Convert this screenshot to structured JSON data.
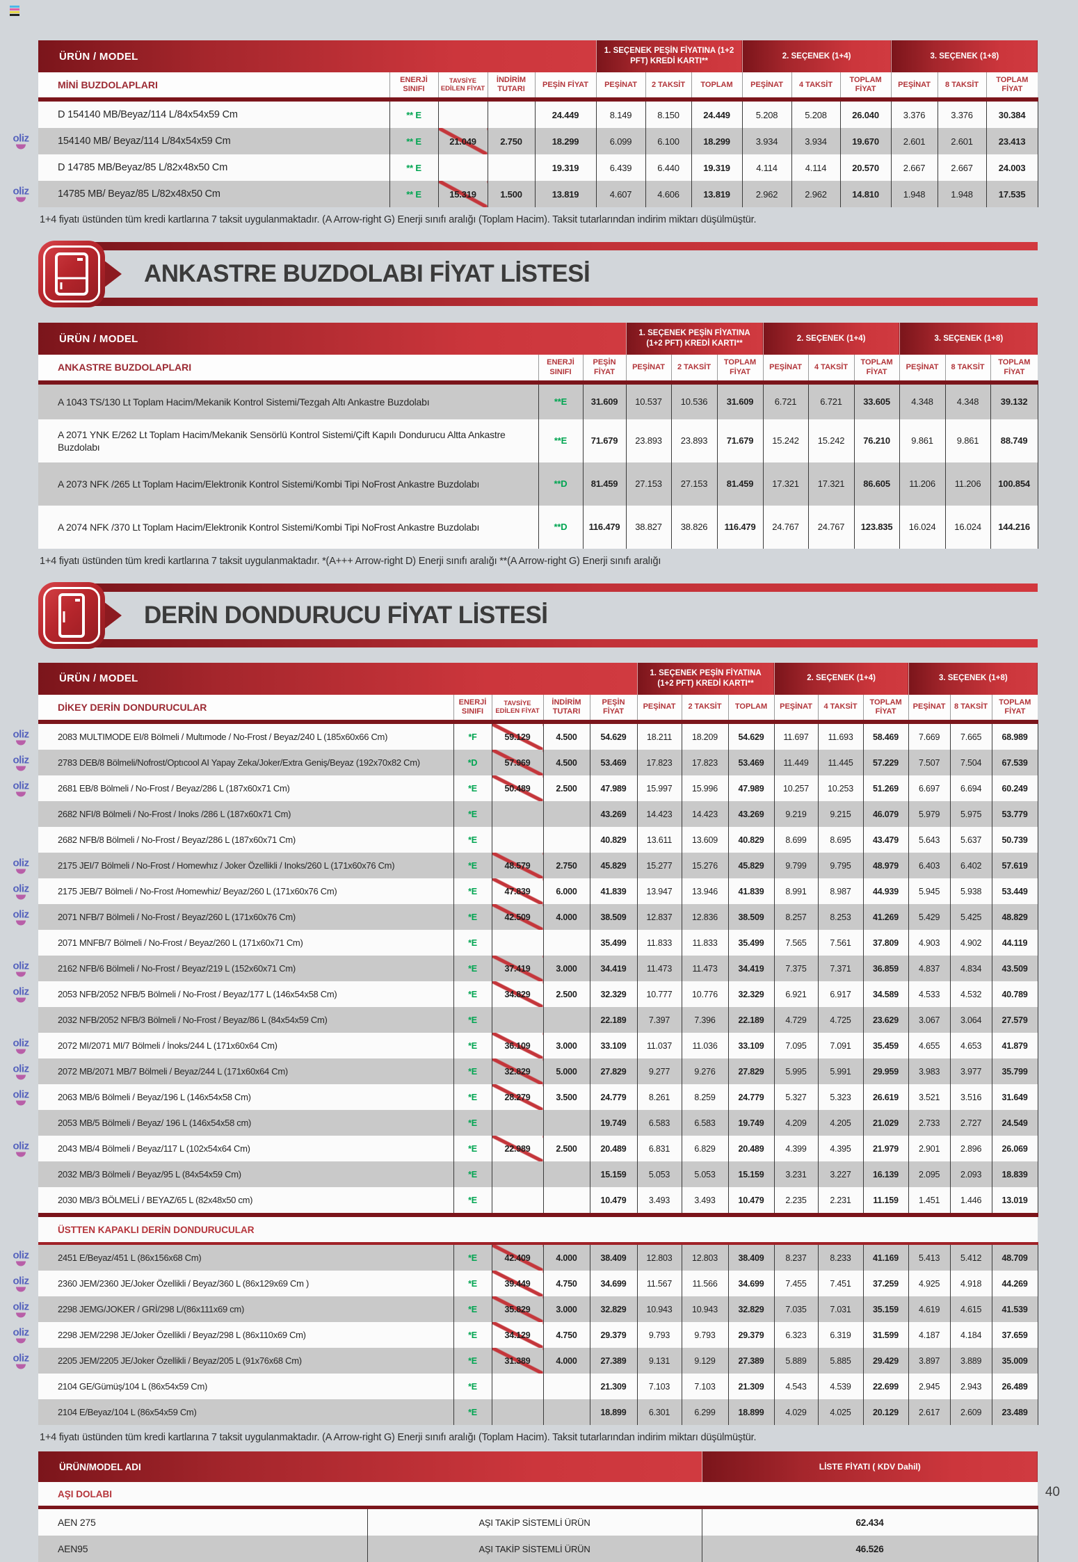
{
  "badge_label": "oliz",
  "page": {
    "number": "40"
  },
  "colors": {
    "accent_dark_red": "#7b151b",
    "accent_red": "#d03a40",
    "energy_green": "#00a551",
    "row_grey": "#c9c9c9",
    "badge_blue": "#5663bd",
    "badge_magenta": "#b85fa8"
  },
  "sections": {
    "ankastre_title": "ANKASTRE BUZDOLABI FİYAT LİSTESİ",
    "derin_title": "DERİN DONDURUCU FİYAT LİSTESİ"
  },
  "mini_table": {
    "urun_model_label": "ÜRÜN / MODEL",
    "group_headers": [
      "1. SEÇENEK PEŞİN FİYATINA (1+2 PFT) KREDİ KARTI**",
      "2. SEÇENEK (1+4)",
      "3. SEÇENEK (1+8)"
    ],
    "section_label": "MİNİ BUZDOLAPLARI",
    "col_headers": [
      "ENERJİ SINIFI",
      "TAVSİYE EDİLEN FİYAT",
      "İNDİRİM TUTARI",
      "PEŞİN FİYAT",
      "PEŞİNAT",
      "2 TAKSİT",
      "TOPLAM",
      "PEŞİNAT",
      "4 TAKSİT",
      "TOPLAM FİYAT",
      "PEŞİNAT",
      "8 TAKSİT",
      "TOPLAM FİYAT"
    ],
    "rows": [
      {
        "model": "D 154140 MB/Beyaz/114 L/84x54x59 Cm",
        "badge": false,
        "cells": [
          "** E",
          "",
          "",
          "24.449",
          "8.149",
          "8.150",
          "24.449",
          "5.208",
          "5.208",
          "26.040",
          "3.376",
          "3.376",
          "30.384"
        ]
      },
      {
        "model": "154140 MB/ Beyaz/114 L/84x54x59 Cm",
        "badge": true,
        "cells": [
          "** E",
          "21.049",
          "2.750",
          "18.299",
          "6.099",
          "6.100",
          "18.299",
          "3.934",
          "3.934",
          "19.670",
          "2.601",
          "2.601",
          "23.413"
        ]
      },
      {
        "model": "D 14785 MB/Beyaz/85 L/82x48x50 Cm",
        "badge": false,
        "cells": [
          "** E",
          "",
          "",
          "19.319",
          "6.439",
          "6.440",
          "19.319",
          "4.114",
          "4.114",
          "20.570",
          "2.667",
          "2.667",
          "24.003"
        ]
      },
      {
        "model": "14785 MB/ Beyaz/85 L/82x48x50 Cm",
        "badge": true,
        "cells": [
          "** E",
          "15.319",
          "1.500",
          "13.819",
          "4.607",
          "4.606",
          "13.819",
          "2.962",
          "2.962",
          "14.810",
          "1.948",
          "1.948",
          "17.535"
        ]
      }
    ],
    "note": "1+4 fiyatı üstünden tüm kredi kartlarına 7 taksit uygulanmaktadır. (A Arrow-right G) Enerji sınıfı aralığı (Toplam Hacim). Taksit tutarlarından indirim miktarı düşülmüştür."
  },
  "ankastre_table": {
    "urun_model_label": "ÜRÜN / MODEL",
    "group_headers": [
      "1. SEÇENEK PEŞİN FİYATINA (1+2 PFT) KREDİ KARTI**",
      "2. SEÇENEK (1+4)",
      "3. SEÇENEK (1+8)"
    ],
    "section_label": "ANKASTRE BUZDOLAPLARI",
    "col_headers": [
      "ENERJİ SINIFI",
      "PEŞİN FİYAT",
      "PEŞİNAT",
      "2 TAKSİT",
      "TOPLAM FİYAT",
      "PEŞİNAT",
      "4 TAKSİT",
      "TOPLAM FİYAT",
      "PEŞİNAT",
      "8 TAKSİT",
      "TOPLAM FİYAT"
    ],
    "rows": [
      {
        "model": "A 1043 TS/130 Lt Toplam Hacim/Mekanik Kontrol Sistemi/Tezgah Altı Ankastre Buzdolabı",
        "badge": false,
        "cells": [
          "**E",
          "31.609",
          "10.537",
          "10.536",
          "31.609",
          "6.721",
          "6.721",
          "33.605",
          "4.348",
          "4.348",
          "39.132"
        ]
      },
      {
        "model": "A 2071 YNK E/262 Lt Toplam Hacim/Mekanik Sensörlü Kontrol Sistemi/Çift Kapılı Dondurucu Altta Ankastre Buzdolabı",
        "badge": false,
        "cells": [
          "**E",
          "71.679",
          "23.893",
          "23.893",
          "71.679",
          "15.242",
          "15.242",
          "76.210",
          "9.861",
          "9.861",
          "88.749"
        ]
      },
      {
        "model": "A 2073 NFK /265 Lt Toplam Hacim/Elektronik Kontrol Sistemi/Kombi Tipi NoFrost Ankastre Buzdolabı",
        "badge": false,
        "cells": [
          "**D",
          "81.459",
          "27.153",
          "27.153",
          "81.459",
          "17.321",
          "17.321",
          "86.605",
          "11.206",
          "11.206",
          "100.854"
        ]
      },
      {
        "model": "A 2074 NFK /370 Lt Toplam Hacim/Elektronik Kontrol Sistemi/Kombi Tipi NoFrost Ankastre Buzdolabı",
        "badge": false,
        "cells": [
          "**D",
          "116.479",
          "38.827",
          "38.826",
          "116.479",
          "24.767",
          "24.767",
          "123.835",
          "16.024",
          "16.024",
          "144.216"
        ]
      }
    ],
    "note": "1+4 fiyatı üstünden tüm kredi kartlarına 7 taksit uygulanmaktadır.   *(A+++ Arrow-right D) Enerji sınıfı aralığı   **(A Arrow-right G) Enerji sınıfı aralığı"
  },
  "dikey_table": {
    "urun_model_label": "ÜRÜN / MODEL",
    "group_headers": [
      "1. SEÇENEK PEŞİN FİYATINA (1+2 PFT) KREDİ KARTI**",
      "2. SEÇENEK (1+4)",
      "3. SEÇENEK (1+8)"
    ],
    "section_label": "DİKEY DERİN DONDURUCULAR",
    "ustten_label": "ÜSTTEN KAPAKLI DERİN DONDURUCULAR",
    "col_headers": [
      "ENERJİ SINIFI",
      "TAVSİYE EDİLEN FİYAT",
      "İNDİRİM TUTARI",
      "PEŞİN FİYAT",
      "PEŞİNAT",
      "2 TAKSİT",
      "TOPLAM",
      "PEŞİNAT",
      "4 TAKSİT",
      "TOPLAM FİYAT",
      "PEŞİNAT",
      "8 TAKSİT",
      "TOPLAM FİYAT"
    ],
    "rows": [
      {
        "model": "2083 MULTIMODE EI/8 Bölmeli / Multımode / No-Frost / Beyaz/240 L (185x60x66 Cm)",
        "badge": true,
        "cells": [
          "*F",
          "59.129",
          "4.500",
          "54.629",
          "18.211",
          "18.209",
          "54.629",
          "11.697",
          "11.693",
          "58.469",
          "7.669",
          "7.665",
          "68.989"
        ]
      },
      {
        "model": "2783 DEB/8 Bölmeli/Nofrost/Optıcool AI Yapay Zeka/Joker/Extra Geniş/Beyaz (192x70x82 Cm)",
        "badge": true,
        "cells": [
          "*D",
          "57.969",
          "4.500",
          "53.469",
          "17.823",
          "17.823",
          "53.469",
          "11.449",
          "11.445",
          "57.229",
          "7.507",
          "7.504",
          "67.539"
        ]
      },
      {
        "model": "2681 EB/8 Bölmeli / No-Frost / Beyaz/286 L (187x60x71 Cm)",
        "badge": true,
        "cells": [
          "*E",
          "50.489",
          "2.500",
          "47.989",
          "15.997",
          "15.996",
          "47.989",
          "10.257",
          "10.253",
          "51.269",
          "6.697",
          "6.694",
          "60.249"
        ]
      },
      {
        "model": "2682 NFI/8 Bölmeli / No-Frost / Inoks /286 L (187x60x71 Cm)",
        "badge": false,
        "cells": [
          "*E",
          "",
          "",
          "43.269",
          "14.423",
          "14.423",
          "43.269",
          "9.219",
          "9.215",
          "46.079",
          "5.979",
          "5.975",
          "53.779"
        ]
      },
      {
        "model": "2682 NFB/8 Bölmeli / No-Frost / Beyaz/286 L (187x60x71 Cm)",
        "badge": false,
        "cells": [
          "*E",
          "",
          "",
          "40.829",
          "13.611",
          "13.609",
          "40.829",
          "8.699",
          "8.695",
          "43.479",
          "5.643",
          "5.637",
          "50.739"
        ]
      },
      {
        "model": "2175 JEI/7 Bölmeli / No-Frost / Homewhız / Joker Özellikli / Inoks/260 L (171x60x76 Cm)",
        "badge": true,
        "cells": [
          "*E",
          "48.579",
          "2.750",
          "45.829",
          "15.277",
          "15.276",
          "45.829",
          "9.799",
          "9.795",
          "48.979",
          "6.403",
          "6.402",
          "57.619"
        ]
      },
      {
        "model": "2175 JEB/7 Bölmeli / No-Frost /Homewhiz/ Beyaz/260 L (171x60x76 Cm)",
        "badge": true,
        "cells": [
          "*E",
          "47.839",
          "6.000",
          "41.839",
          "13.947",
          "13.946",
          "41.839",
          "8.991",
          "8.987",
          "44.939",
          "5.945",
          "5.938",
          "53.449"
        ]
      },
      {
        "model": "2071 NFB/7 Bölmeli / No-Frost / Beyaz/260 L (171x60x76 Cm)",
        "badge": true,
        "cells": [
          "*E",
          "42.509",
          "4.000",
          "38.509",
          "12.837",
          "12.836",
          "38.509",
          "8.257",
          "8.253",
          "41.269",
          "5.429",
          "5.425",
          "48.829"
        ]
      },
      {
        "model": "2071 MNFB/7 Bölmeli / No-Frost / Beyaz/260 L (171x60x71 Cm)",
        "badge": false,
        "cells": [
          "*E",
          "",
          "",
          "35.499",
          "11.833",
          "11.833",
          "35.499",
          "7.565",
          "7.561",
          "37.809",
          "4.903",
          "4.902",
          "44.119"
        ]
      },
      {
        "model": "2162 NFB/6 Bölmeli / No-Frost / Beyaz/219 L (152x60x71 Cm)",
        "badge": true,
        "cells": [
          "*E",
          "37.419",
          "3.000",
          "34.419",
          "11.473",
          "11.473",
          "34.419",
          "7.375",
          "7.371",
          "36.859",
          "4.837",
          "4.834",
          "43.509"
        ]
      },
      {
        "model": "2053 NFB/2052 NFB/5 Bölmeli / No-Frost / Beyaz/177 L (146x54x58 Cm)",
        "badge": true,
        "cells": [
          "*E",
          "34.829",
          "2.500",
          "32.329",
          "10.777",
          "10.776",
          "32.329",
          "6.921",
          "6.917",
          "34.589",
          "4.533",
          "4.532",
          "40.789"
        ]
      },
      {
        "model": "2032 NFB/2052 NFB/3 Bölmeli / No-Frost / Beyaz/86 L (84x54x59 Cm)",
        "badge": false,
        "cells": [
          "*E",
          "",
          "",
          "22.189",
          "7.397",
          "7.396",
          "22.189",
          "4.729",
          "4.725",
          "23.629",
          "3.067",
          "3.064",
          "27.579"
        ]
      },
      {
        "model": "2072 MI/2071 MI/7 Bölmeli / İnoks/244 L (171x60x64 Cm)",
        "badge": true,
        "cells": [
          "*E",
          "36.109",
          "3.000",
          "33.109",
          "11.037",
          "11.036",
          "33.109",
          "7.095",
          "7.091",
          "35.459",
          "4.655",
          "4.653",
          "41.879"
        ]
      },
      {
        "model": "2072 MB/2071 MB/7 Bölmeli / Beyaz/244 L (171x60x64 Cm)",
        "badge": true,
        "cells": [
          "*E",
          "32.829",
          "5.000",
          "27.829",
          "9.277",
          "9.276",
          "27.829",
          "5.995",
          "5.991",
          "29.959",
          "3.983",
          "3.977",
          "35.799"
        ]
      },
      {
        "model": "2063 MB/6 Bölmeli / Beyaz/196 L (146x54x58 Cm)",
        "badge": true,
        "cells": [
          "*E",
          "28.279",
          "3.500",
          "24.779",
          "8.261",
          "8.259",
          "24.779",
          "5.327",
          "5.323",
          "26.619",
          "3.521",
          "3.516",
          "31.649"
        ]
      },
      {
        "model": "2053 MB/5 Bölmeli / Beyaz/ 196 L (146x54x58 cm)",
        "badge": false,
        "cells": [
          "*E",
          "",
          "",
          "19.749",
          "6.583",
          "6.583",
          "19.749",
          "4.209",
          "4.205",
          "21.029",
          "2.733",
          "2.727",
          "24.549"
        ]
      },
      {
        "model": "2043 MB/4 Bölmeli / Beyaz/117 L (102x54x64 Cm)",
        "badge": true,
        "cells": [
          "*E",
          "22.989",
          "2.500",
          "20.489",
          "6.831",
          "6.829",
          "20.489",
          "4.399",
          "4.395",
          "21.979",
          "2.901",
          "2.896",
          "26.069"
        ]
      },
      {
        "model": "2032 MB/3 Bölmeli / Beyaz/95 L (84x54x59 Cm)",
        "badge": false,
        "cells": [
          "*E",
          "",
          "",
          "15.159",
          "5.053",
          "5.053",
          "15.159",
          "3.231",
          "3.227",
          "16.139",
          "2.095",
          "2.093",
          "18.839"
        ]
      },
      {
        "model": "2030 MB/3 BÖLMELİ / BEYAZ/65 L (82x48x50 cm)",
        "badge": false,
        "cells": [
          "*E",
          "",
          "",
          "10.479",
          "3.493",
          "3.493",
          "10.479",
          "2.235",
          "2.231",
          "11.159",
          "1.451",
          "1.446",
          "13.019"
        ]
      }
    ],
    "ustten_rows": [
      {
        "model": "2451 E/Beyaz/451 L (86x156x68 Cm)",
        "badge": true,
        "cells": [
          "*E",
          "42.409",
          "4.000",
          "38.409",
          "12.803",
          "12.803",
          "38.409",
          "8.237",
          "8.233",
          "41.169",
          "5.413",
          "5.412",
          "48.709"
        ]
      },
      {
        "model": "2360 JEM/2360 JE/Joker Özellikli / Beyaz/360 L (86x129x69 Cm )",
        "badge": true,
        "cells": [
          "*E",
          "39.449",
          "4.750",
          "34.699",
          "11.567",
          "11.566",
          "34.699",
          "7.455",
          "7.451",
          "37.259",
          "4.925",
          "4.918",
          "44.269"
        ]
      },
      {
        "model": "2298 JEMG/JOKER / GRİ/298 L/(86x111x69 cm)",
        "badge": true,
        "cells": [
          "*E",
          "35.829",
          "3.000",
          "32.829",
          "10.943",
          "10.943",
          "32.829",
          "7.035",
          "7.031",
          "35.159",
          "4.619",
          "4.615",
          "41.539"
        ]
      },
      {
        "model": "2298 JEM/2298 JE/Joker Özellikli / Beyaz/298 L (86x110x69 Cm)",
        "badge": true,
        "cells": [
          "*E",
          "34.129",
          "4.750",
          "29.379",
          "9.793",
          "9.793",
          "29.379",
          "6.323",
          "6.319",
          "31.599",
          "4.187",
          "4.184",
          "37.659"
        ]
      },
      {
        "model": "2205 JEM/2205 JE/Joker Özellikli / Beyaz/205 L (91x76x68 Cm)",
        "badge": true,
        "cells": [
          "*E",
          "31.389",
          "4.000",
          "27.389",
          "9.131",
          "9.129",
          "27.389",
          "5.889",
          "5.885",
          "29.429",
          "3.897",
          "3.889",
          "35.009"
        ]
      },
      {
        "model": "2104 GE/Gümüş/104 L (86x54x59 Cm)",
        "badge": false,
        "cells": [
          "*E",
          "",
          "",
          "21.309",
          "7.103",
          "7.103",
          "21.309",
          "4.543",
          "4.539",
          "22.699",
          "2.945",
          "2.943",
          "26.489"
        ]
      },
      {
        "model": "2104 E/Beyaz/104 L (86x54x59 Cm)",
        "badge": false,
        "cells": [
          "*E",
          "",
          "",
          "18.899",
          "6.301",
          "6.299",
          "18.899",
          "4.029",
          "4.025",
          "20.129",
          "2.617",
          "2.609",
          "23.489"
        ]
      }
    ],
    "note": "1+4 fiyatı üstünden tüm kredi kartlarına 7 taksit uygulanmaktadır. (A Arrow-right G) Enerji sınıfı aralığı (Toplam Hacim). Taksit tutarlarından indirim miktarı düşülmüştür."
  },
  "asi_table": {
    "header_left": "ÜRÜN/MODEL ADI",
    "header_right": "LİSTE FİYATI ( KDV Dahil)",
    "section_label": "AŞI DOLABI",
    "rows": [
      {
        "model": "AEN 275",
        "desc": "AŞI TAKİP SİSTEMLİ ÜRÜN",
        "price": "62.434"
      },
      {
        "model": "AEN95",
        "desc": "AŞI TAKİP SİSTEMLİ ÜRÜN",
        "price": "46.526"
      }
    ]
  }
}
